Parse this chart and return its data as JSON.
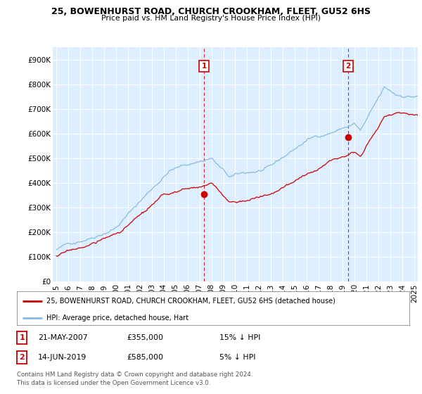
{
  "title": "25, BOWENHURST ROAD, CHURCH CROOKHAM, FLEET, GU52 6HS",
  "subtitle": "Price paid vs. HM Land Registry's House Price Index (HPI)",
  "ylabel_ticks": [
    "£0",
    "£100K",
    "£200K",
    "£300K",
    "£400K",
    "£500K",
    "£600K",
    "£700K",
    "£800K",
    "£900K"
  ],
  "ytick_values": [
    0,
    100000,
    200000,
    300000,
    400000,
    500000,
    600000,
    700000,
    800000,
    900000
  ],
  "ylim": [
    0,
    950000
  ],
  "xlim_start": 1994.7,
  "xlim_end": 2025.3,
  "red_line_color": "#cc0000",
  "blue_line_color": "#88bbdd",
  "marker1_x": 2007.38,
  "marker1_y": 355000,
  "marker2_x": 2019.45,
  "marker2_y": 585000,
  "annotation1": {
    "label": "1",
    "date": "21-MAY-2007",
    "price": "£355,000",
    "pct": "15% ↓ HPI"
  },
  "annotation2": {
    "label": "2",
    "date": "14-JUN-2019",
    "price": "£585,000",
    "pct": "5% ↓ HPI"
  },
  "legend_red": "25, BOWENHURST ROAD, CHURCH CROOKHAM, FLEET, GU52 6HS (detached house)",
  "legend_blue": "HPI: Average price, detached house, Hart",
  "footer": "Contains HM Land Registry data © Crown copyright and database right 2024.\nThis data is licensed under the Open Government Licence v3.0.",
  "background_color": "#ffffff",
  "plot_bg_color": "#ddeeff"
}
